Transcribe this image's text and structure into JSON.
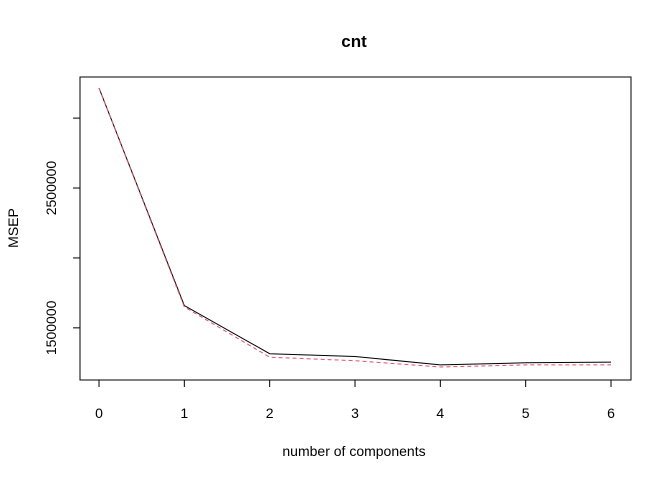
{
  "chart_data": {
    "type": "line",
    "title": "cnt",
    "xlabel": "number of components",
    "ylabel": "MSEP",
    "x": [
      0,
      1,
      2,
      3,
      4,
      5,
      6
    ],
    "xticks": [
      "0",
      "1",
      "2",
      "3",
      "4",
      "5",
      "6"
    ],
    "yticks": [
      1500000,
      2000000,
      2500000,
      3000000
    ],
    "ytick_labels": [
      "1500000",
      "",
      "2500000",
      ""
    ],
    "xlim": [
      0,
      6
    ],
    "ylim": [
      1127000,
      3294000
    ],
    "grid": false,
    "series": [
      {
        "values": [
          3215000,
          1660000,
          1315000,
          1295000,
          1235000,
          1250000,
          1255000
        ],
        "color": "#000000",
        "style": "solid"
      },
      {
        "values": [
          3215000,
          1650000,
          1290000,
          1265000,
          1220000,
          1235000,
          1235000
        ],
        "color": "#df536b",
        "style": "dashed"
      }
    ]
  }
}
